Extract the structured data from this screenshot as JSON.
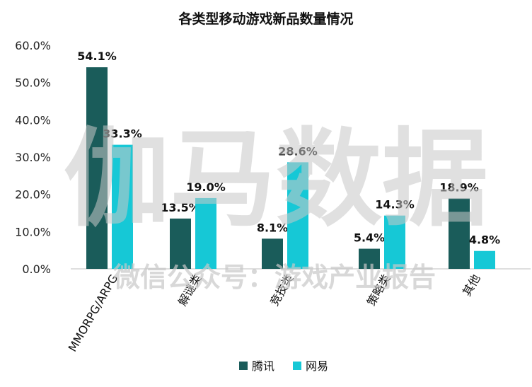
{
  "chart_data": {
    "type": "bar",
    "title": "各类型移动游戏新品数量情况",
    "categories": [
      "MMORPG/ARPG",
      "解谜类",
      "竞技类",
      "策略类",
      "其他"
    ],
    "series": [
      {
        "name": "腾讯",
        "color": "#1a5c5a",
        "values": [
          54.1,
          13.5,
          8.1,
          5.4,
          18.9
        ],
        "labels": [
          "54.1%",
          "13.5%",
          "8.1%",
          "5.4%",
          "18.9%"
        ]
      },
      {
        "name": "网易",
        "color": "#16c8d6",
        "values": [
          33.3,
          19.0,
          28.6,
          14.3,
          4.8
        ],
        "labels": [
          "33.3%",
          "19.0%",
          "28.6%",
          "14.3%",
          "4.8%"
        ]
      }
    ],
    "ylim": [
      0,
      60
    ],
    "yticks": [
      "0.0%",
      "10.0%",
      "20.0%",
      "30.0%",
      "40.0%",
      "50.0%",
      "60.0%"
    ],
    "grid": false,
    "legend": "bottom"
  },
  "watermark": {
    "main": "伽马数据",
    "sub": "微信公众号：游戏产业报告"
  }
}
